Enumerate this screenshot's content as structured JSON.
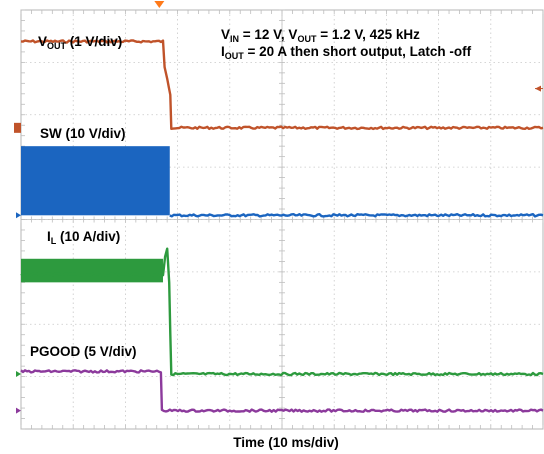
{
  "chart_data": {
    "type": "line",
    "title_line1": {
      "v": "V",
      "in": "IN",
      "a": " = 12 V, V",
      "out": "OUT",
      "b": " = 1.2 V, 425 kHz"
    },
    "title_line2": {
      "i": "I",
      "out": "OUT",
      "a": " = 20 A then short output, Latch -off"
    },
    "xlabel": "Time (10 ms/div)",
    "x_unit": "div",
    "x_range": [
      0,
      10
    ],
    "y_range_div": [
      0,
      8
    ],
    "grid": true,
    "series": [
      {
        "key": "vout",
        "name_main": "V",
        "name_sub": "OUT",
        "name_rest": " (1 V/div)",
        "color": "#c0532a",
        "points": [
          [
            0,
            7.4
          ],
          [
            2.72,
            7.4
          ],
          [
            2.75,
            6.9
          ],
          [
            2.8,
            6.7
          ],
          [
            2.86,
            6.4
          ],
          [
            2.88,
            5.75
          ],
          [
            10,
            5.75
          ]
        ]
      },
      {
        "key": "sw",
        "name_main": "SW",
        "name_sub": "",
        "name_rest": " (10 V/div)",
        "color": "#1b65c0",
        "band": [
          0,
          2.85,
          4.08,
          5.4
        ],
        "points": [
          [
            2.85,
            4.08
          ],
          [
            10,
            4.08
          ]
        ]
      },
      {
        "key": "il",
        "name_main": "I",
        "name_sub": "L",
        "name_rest": " (10 A/div)",
        "color": "#2d9a3e",
        "band": [
          0,
          2.72,
          2.8,
          3.25
        ],
        "points": [
          [
            0,
            2.95
          ],
          [
            2.72,
            2.95
          ],
          [
            2.76,
            3.3
          ],
          [
            2.8,
            3.45
          ],
          [
            2.84,
            2.8
          ],
          [
            2.86,
            1.8
          ],
          [
            2.88,
            1.05
          ],
          [
            10,
            1.05
          ]
        ]
      },
      {
        "key": "pgood",
        "name_main": "PGOOD",
        "name_sub": "",
        "name_rest": " (5 V/div)",
        "color": "#8c3a9c",
        "points": [
          [
            0,
            1.1
          ],
          [
            2.68,
            1.1
          ],
          [
            2.7,
            0.35
          ],
          [
            10,
            0.35
          ]
        ]
      }
    ]
  }
}
